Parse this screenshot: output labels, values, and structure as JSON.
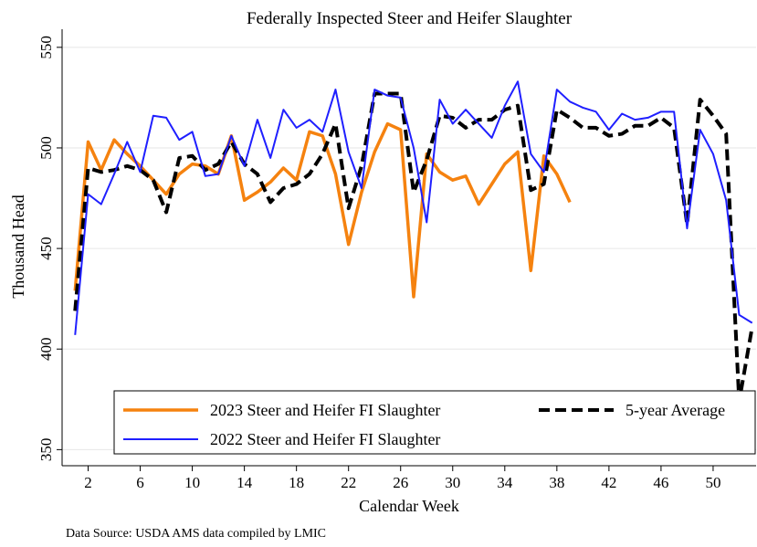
{
  "chart_data": {
    "type": "line",
    "title": "Federally Inspected Steer and Heifer Slaughter",
    "x_label": "Calendar Week",
    "y_label": "Thousand Head",
    "annotation": "Data Source: USDA AMS data compiled by LMIC",
    "x": [
      1,
      2,
      3,
      4,
      5,
      6,
      7,
      8,
      9,
      10,
      11,
      12,
      13,
      14,
      15,
      16,
      17,
      18,
      19,
      20,
      21,
      22,
      23,
      24,
      25,
      26,
      27,
      28,
      29,
      30,
      31,
      32,
      33,
      34,
      35,
      36,
      37,
      38,
      39,
      40,
      41,
      42,
      43,
      44,
      45,
      46,
      47,
      48,
      49,
      50,
      51,
      52,
      53
    ],
    "xlim": [
      0,
      53.3
    ],
    "xticks": [
      2,
      6,
      10,
      14,
      18,
      22,
      26,
      30,
      34,
      38,
      42,
      46,
      50
    ],
    "ylim": [
      342,
      559
    ],
    "yticks": [
      350,
      400,
      450,
      500,
      550
    ],
    "grid": true,
    "series": [
      {
        "name": "2023 Steer and Heifer FI Slaughter",
        "color": "#f5820f",
        "width": 3.5,
        "dashed": false,
        "values": [
          429,
          503,
          489,
          504,
          497,
          491,
          484,
          477,
          487,
          492,
          491,
          487,
          506,
          474,
          478,
          483,
          490,
          484,
          508,
          506,
          487,
          452,
          478,
          498,
          512,
          509,
          426,
          497,
          488,
          484,
          486,
          472,
          482,
          492,
          498,
          439,
          496,
          487,
          473,
          null,
          null,
          null,
          null,
          null,
          null,
          null,
          null,
          null,
          null,
          null,
          null,
          null,
          null
        ]
      },
      {
        "name": "5-year Average",
        "color": "#000000",
        "width": 4,
        "dashed": true,
        "values": [
          419,
          490,
          488,
          489,
          491,
          489,
          484,
          468,
          495,
          496,
          489,
          492,
          503,
          492,
          487,
          473,
          480,
          482,
          487,
          497,
          512,
          470,
          491,
          527,
          527,
          527,
          478,
          494,
          516,
          515,
          510,
          514,
          514,
          519,
          521,
          479,
          482,
          519,
          515,
          510,
          510,
          506,
          507,
          511,
          511,
          515,
          510,
          462,
          524,
          516,
          507,
          374,
          411
        ]
      },
      {
        "name": "2022 Steer and Heifer FI Slaughter",
        "color": "#1f1fff",
        "width": 2,
        "dashed": false,
        "values": [
          407,
          477,
          472,
          487,
          503,
          488,
          516,
          515,
          504,
          508,
          486,
          487,
          506,
          491,
          514,
          495,
          519,
          510,
          514,
          508,
          529,
          498,
          480,
          529,
          526,
          525,
          500,
          463,
          524,
          512,
          519,
          512,
          505,
          521,
          533,
          497,
          488,
          529,
          523,
          520,
          518,
          509,
          517,
          514,
          515,
          518,
          518,
          460,
          509,
          497,
          474,
          417,
          413
        ]
      }
    ]
  }
}
